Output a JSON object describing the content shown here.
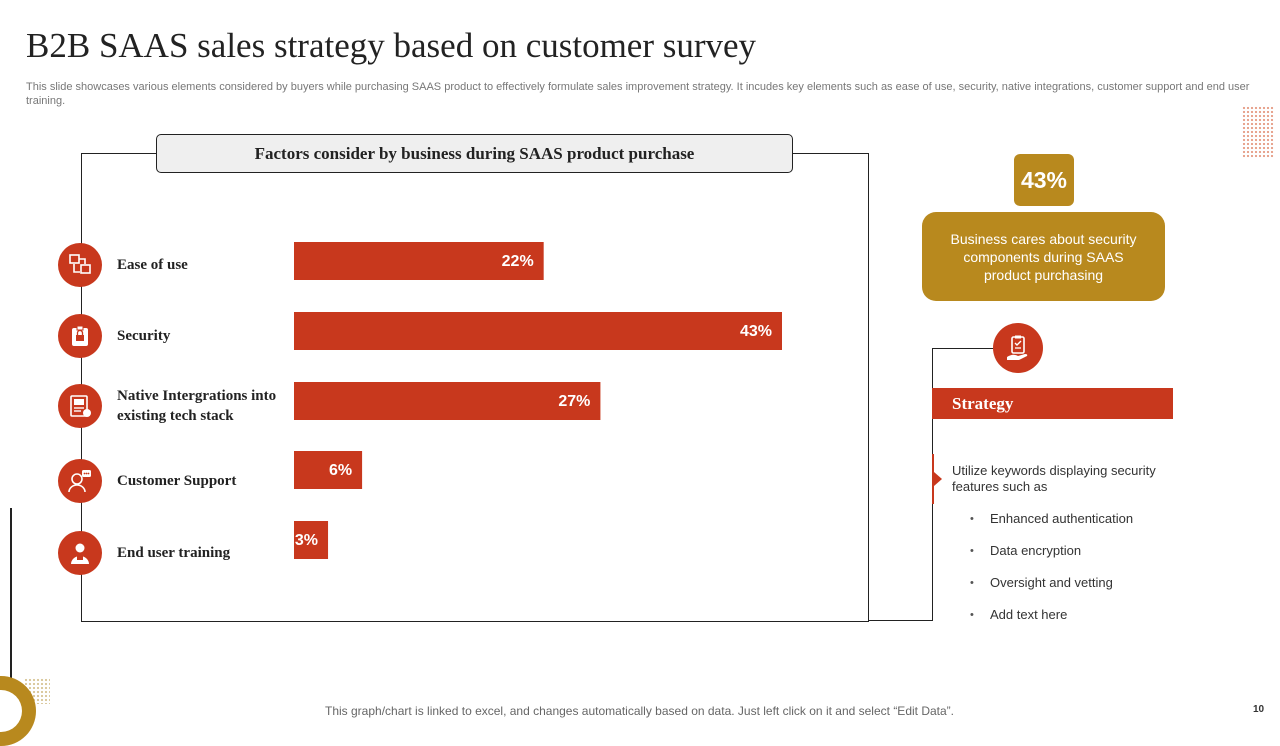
{
  "title": "B2B SAAS  sales strategy  based on customer survey",
  "subtitle": "This slide showcases various elements considered by buyers while purchasing SAAS product to  effectively formulate sales improvement strategy. It incudes key elements such as ease of use, security, native integrations, customer support and end user training.",
  "chart_heading": "Factors consider by business during  SAAS product purchase",
  "chart_data": {
    "type": "bar",
    "orientation": "horizontal",
    "title": "Factors consider by business during  SAAS product purchase",
    "categories": [
      "Ease of use",
      "Security",
      "Native Intergrations into  existing tech stack",
      "Customer  Support",
      "End  user training"
    ],
    "values": [
      22,
      43,
      27,
      6,
      3
    ],
    "labels": [
      "22%",
      "43%",
      "27%",
      "6%",
      "3%"
    ],
    "unit": "%",
    "xlim": [
      0,
      45
    ],
    "bar_color": "#c8381d"
  },
  "rows": [
    {
      "label": "Ease of use",
      "icon": "ease-of-use-icon"
    },
    {
      "label": "Security",
      "icon": "security-badge-icon"
    },
    {
      "label": "Native Intergrations into  existing tech stack",
      "icon": "integration-icon"
    },
    {
      "label": "Customer  Support",
      "icon": "customer-support-icon"
    },
    {
      "label": "End  user training",
      "icon": "user-training-icon"
    }
  ],
  "highlight": {
    "badge": "43%",
    "text": "Business cares about security components during SAAS product purchasing"
  },
  "strategy": {
    "heading": "Strategy",
    "text": "Utilize keywords displaying security features  such as",
    "bullets": [
      "Enhanced authentication",
      "Data encryption",
      "Oversight  and vetting",
      "Add text here"
    ]
  },
  "footer": "This graph/chart is linked to excel,  and changes automatically based on data. Just left click on it and select “Edit Data”.",
  "page_number": "10",
  "colors": {
    "accent": "#c8381d",
    "gold": "#b8891e"
  }
}
